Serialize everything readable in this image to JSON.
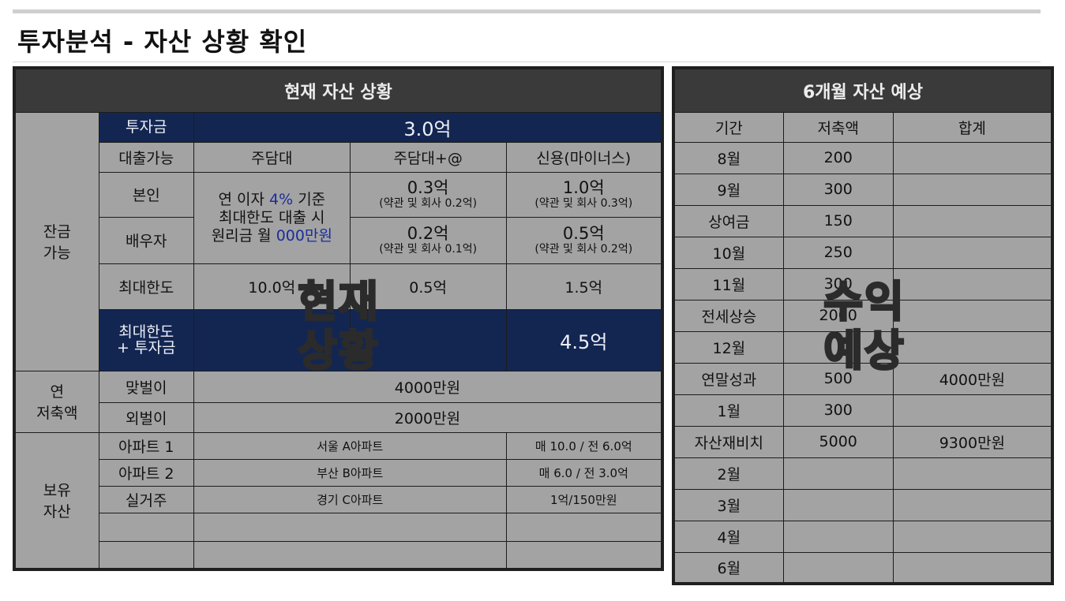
{
  "page": {
    "title": "투자분석 - 자산 상황 확인"
  },
  "left_table": {
    "header": "현재 자산 상황",
    "group_balance": "잔금\n가능",
    "group_savings": "연\n저축액",
    "group_assets": "보유\n자산",
    "invest": {
      "label": "투자금",
      "value": "3.0억"
    },
    "loan_row": {
      "label": "대출가능",
      "col1": "주담대",
      "col2": "주담대+@",
      "col3": "신용(마이너스)"
    },
    "self_row": {
      "label": "본인",
      "col2_main": "0.3억",
      "col2_sub": "(약관 및 회사 0.2억)",
      "col3_main": "1.0억",
      "col3_sub": "(약관 및 회사 0.3억)"
    },
    "merged_note": {
      "line1_a": "연 이자 ",
      "line1_b": "4%",
      "line1_c": " 기준",
      "line2": "최대한도 대출 시",
      "line3_a": "원리금 월 ",
      "line3_b": "000만원"
    },
    "spouse_row": {
      "label": "배우자",
      "col2_main": "0.2억",
      "col2_sub": "(약관 및 회사 0.1억)",
      "col3_main": "0.5억",
      "col3_sub": "(약관 및 회사 0.2억)"
    },
    "max_row": {
      "label": "최대한도",
      "col1": "10.0억",
      "col2": "0.5억",
      "col3": "1.5억"
    },
    "total_row": {
      "label": "최대한도\n+ 투자금",
      "col1": "",
      "col2": "",
      "col3": "4.5억"
    },
    "savings_rows": [
      {
        "label": "맞벌이",
        "value": "4000만원"
      },
      {
        "label": "외벌이",
        "value": "2000만원"
      }
    ],
    "asset_rows": [
      {
        "label": "아파트 1",
        "name": "서울 A아파트",
        "price": "매 10.0 / 전 6.0억"
      },
      {
        "label": "아파트 2",
        "name": "부산 B아파트",
        "price": "매 6.0 / 전 3.0억"
      },
      {
        "label": "실거주",
        "name": "경기 C아파트",
        "price": "1억/150만원"
      },
      {
        "label": "",
        "name": "",
        "price": ""
      },
      {
        "label": "",
        "name": "",
        "price": ""
      }
    ]
  },
  "right_table": {
    "header": "6개월 자산 예상",
    "columns": [
      "기간",
      "저축액",
      "합계"
    ],
    "rows": [
      {
        "period": "8월",
        "saving": "200",
        "total": ""
      },
      {
        "period": "9월",
        "saving": "300",
        "total": ""
      },
      {
        "period": "상여금",
        "saving": "150",
        "total": ""
      },
      {
        "period": "10월",
        "saving": "250",
        "total": ""
      },
      {
        "period": "11월",
        "saving": "300",
        "total": ""
      },
      {
        "period": "전세상승",
        "saving": "2000",
        "total": ""
      },
      {
        "period": "12월",
        "saving": "",
        "total": ""
      },
      {
        "period": "연말성과",
        "saving": "500",
        "total": "4000만원"
      },
      {
        "period": "1월",
        "saving": "300",
        "total": ""
      },
      {
        "period": "자산재비치",
        "saving": "5000",
        "total": "9300만원"
      },
      {
        "period": "2월",
        "saving": "",
        "total": ""
      },
      {
        "period": "3월",
        "saving": "",
        "total": ""
      },
      {
        "period": "4월",
        "saving": "",
        "total": ""
      },
      {
        "period": "6월",
        "saving": "",
        "total": ""
      }
    ]
  },
  "overlays": {
    "current": {
      "line1": "현재",
      "line2": "상황"
    },
    "forecast": {
      "line1": "수익",
      "line2": "예상"
    }
  }
}
